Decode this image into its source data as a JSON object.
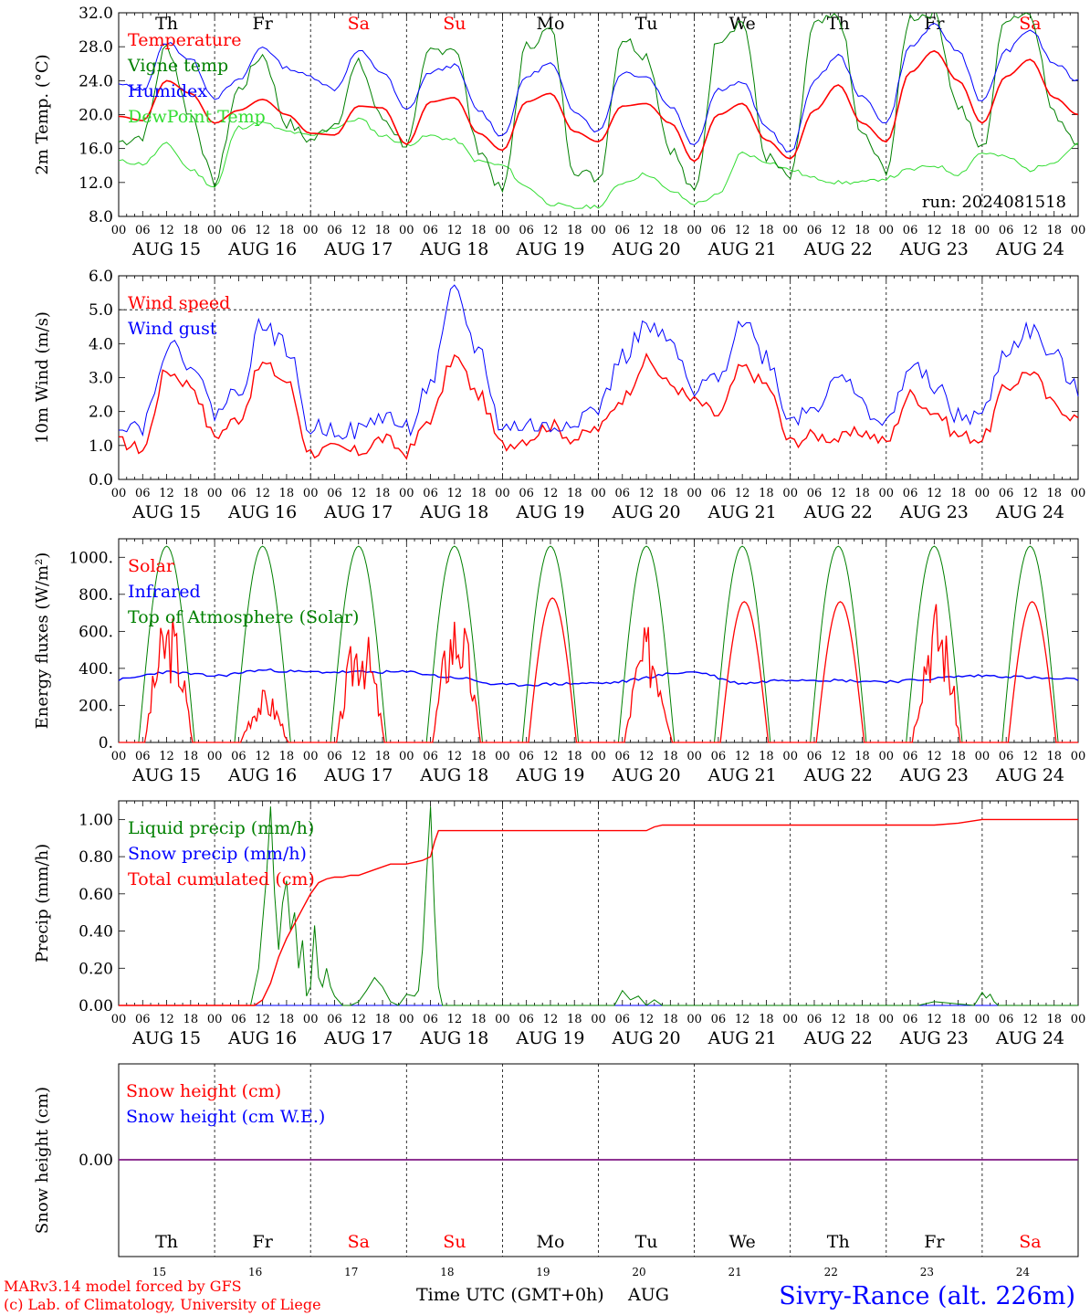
{
  "days": [
    {
      "abbr": "Th",
      "num": "15",
      "weekend": false
    },
    {
      "abbr": "Fr",
      "num": "16",
      "weekend": false
    },
    {
      "abbr": "Sa",
      "num": "17",
      "weekend": true
    },
    {
      "abbr": "Su",
      "num": "18",
      "weekend": true
    },
    {
      "abbr": "Mo",
      "num": "19",
      "weekend": false
    },
    {
      "abbr": "Tu",
      "num": "20",
      "weekend": false
    },
    {
      "abbr": "We",
      "num": "21",
      "weekend": false
    },
    {
      "abbr": "Th",
      "num": "22",
      "weekend": false
    },
    {
      "abbr": "Fr",
      "num": "23",
      "weekend": false
    },
    {
      "abbr": "Sa",
      "num": "24",
      "weekend": true
    }
  ],
  "hour_labels": [
    "00",
    "06",
    "12",
    "18"
  ],
  "end_hour_label": "00",
  "month_prefix": "AUG",
  "month_label": "AUG",
  "colors": {
    "red": "#ff0000",
    "blue": "#0000ff",
    "green": "#008000",
    "lime": "#33dd33",
    "weekend": "#ff0000"
  },
  "footer": {
    "model": "MARv3.14 model forced by GFS",
    "lab": "(c) Lab. of Climatology, University of Liege",
    "time_label": "Time UTC (GMT+0h)",
    "station": "Sivry-Rance (alt. 226m)"
  },
  "chart_data": [
    {
      "type": "line",
      "ylabel": "2m Temp. (°C)",
      "ylim": [
        8,
        32
      ],
      "yticks": [
        "8.0",
        "12.0",
        "16.0",
        "20.0",
        "24.0",
        "28.0",
        "32.0"
      ],
      "run_label": "run: 2024081518",
      "legend": [
        "Temperature",
        "Vigne temp",
        "Humidex",
        "DewPoint Temp"
      ],
      "x_hours": [
        0,
        6,
        12,
        18,
        24,
        30,
        36,
        42,
        48,
        54,
        60,
        66,
        72,
        78,
        84,
        90,
        96,
        102,
        108,
        114,
        120,
        126,
        132,
        138,
        144,
        150,
        156,
        162,
        168,
        174,
        180,
        186,
        192,
        198,
        204,
        210,
        216,
        222,
        228,
        234,
        240
      ],
      "series": [
        {
          "name": "Temperature",
          "color": "red",
          "values": [
            19.8,
            19.3,
            24.0,
            22.5,
            19.0,
            20.5,
            21.8,
            20.0,
            17.8,
            17.6,
            21.0,
            20.8,
            16.5,
            21.5,
            22.0,
            17.8,
            15.8,
            21.5,
            22.5,
            18.0,
            16.8,
            21.0,
            21.3,
            19.0,
            14.5,
            20.0,
            21.3,
            17.0,
            14.8,
            20.5,
            23.5,
            19.0,
            16.8,
            25.0,
            27.5,
            24.0,
            19.0,
            24.5,
            26.5,
            22.0,
            20.0
          ]
        },
        {
          "name": "Vigne temp",
          "color": "green",
          "values": [
            16.8,
            17.5,
            28.0,
            20.0,
            12.0,
            23.0,
            27.0,
            19.0,
            17.0,
            19.0,
            26.0,
            19.5,
            16.5,
            27.5,
            28.0,
            16.0,
            11.0,
            28.0,
            30.0,
            13.5,
            12.5,
            29.0,
            27.0,
            16.0,
            10.8,
            29.0,
            31.0,
            15.0,
            12.5,
            30.5,
            31.5,
            17.5,
            13.5,
            31.5,
            32.0,
            21.0,
            16.0,
            31.5,
            32.0,
            20.0,
            17.0
          ]
        },
        {
          "name": "Humidex",
          "color": "blue",
          "values": [
            23.5,
            23.0,
            28.5,
            26.5,
            22.0,
            24.0,
            28.0,
            25.5,
            24.5,
            23.0,
            27.5,
            25.0,
            20.5,
            25.0,
            25.8,
            20.5,
            17.5,
            24.5,
            26.0,
            20.5,
            18.0,
            25.0,
            24.5,
            21.0,
            16.5,
            23.0,
            23.8,
            18.5,
            15.5,
            24.0,
            27.0,
            22.0,
            19.0,
            28.0,
            30.5,
            27.5,
            21.5,
            27.5,
            30.0,
            26.0,
            24.0
          ]
        },
        {
          "name": "DewPoint Temp",
          "color": "lime",
          "values": [
            14.5,
            14.2,
            16.5,
            13.5,
            11.5,
            18.5,
            19.0,
            18.0,
            17.5,
            18.5,
            19.5,
            17.5,
            16.5,
            17.5,
            17.0,
            14.5,
            14.0,
            11.5,
            9.5,
            9.0,
            9.2,
            12.0,
            13.0,
            11.0,
            9.5,
            10.5,
            15.5,
            14.5,
            13.5,
            12.5,
            12.0,
            12.0,
            12.5,
            13.5,
            14.0,
            13.0,
            15.5,
            15.0,
            13.5,
            14.5,
            16.5
          ]
        }
      ]
    },
    {
      "type": "line",
      "ylabel": "10m Wind (m/s)",
      "ylim": [
        0,
        6
      ],
      "yticks": [
        "0.0",
        "1.0",
        "2.0",
        "3.0",
        "4.0",
        "5.0",
        "6.0"
      ],
      "dashed_y": 5,
      "legend": [
        "Wind speed",
        "Wind gust"
      ],
      "x_hours": [
        0,
        6,
        12,
        18,
        24,
        30,
        36,
        42,
        48,
        54,
        60,
        66,
        72,
        78,
        84,
        90,
        96,
        102,
        108,
        114,
        120,
        126,
        132,
        138,
        144,
        150,
        156,
        162,
        168,
        174,
        180,
        186,
        192,
        198,
        204,
        210,
        216,
        222,
        228,
        234,
        240
      ],
      "series": [
        {
          "name": "Wind speed",
          "color": "red",
          "values": [
            1.1,
            0.9,
            3.2,
            2.8,
            1.3,
            1.8,
            3.4,
            2.9,
            0.8,
            0.9,
            0.8,
            1.2,
            0.8,
            1.8,
            3.6,
            2.5,
            1.0,
            1.2,
            1.6,
            1.2,
            1.5,
            2.4,
            3.5,
            2.8,
            2.3,
            1.9,
            3.3,
            2.8,
            1.1,
            1.3,
            1.2,
            1.4,
            1.1,
            2.5,
            2.0,
            1.3,
            1.2,
            2.7,
            3.2,
            2.2,
            1.8
          ]
        },
        {
          "name": "Wind gust",
          "color": "blue",
          "values": [
            1.7,
            1.6,
            3.9,
            3.5,
            2.0,
            2.6,
            4.6,
            3.9,
            1.5,
            1.5,
            1.4,
            1.9,
            1.5,
            2.8,
            5.5,
            3.8,
            1.5,
            1.6,
            1.5,
            1.8,
            2.1,
            3.6,
            4.5,
            4.0,
            2.5,
            3.1,
            4.7,
            3.6,
            1.8,
            2.1,
            3.2,
            2.2,
            1.6,
            3.3,
            2.8,
            1.8,
            1.9,
            3.8,
            4.4,
            3.6,
            2.6
          ]
        }
      ]
    },
    {
      "type": "line",
      "ylabel": "Energy fluxes (W/m²)",
      "ylim": [
        0,
        1100
      ],
      "yticks": [
        "0.",
        "200.",
        "400.",
        "600.",
        "800.",
        "1000."
      ],
      "legend": [
        "Solar",
        "Infrared",
        "Top of Atmosphere (Solar)"
      ],
      "toa_peak": 1060,
      "solar_peaks": [
        700,
        280,
        640,
        740,
        780,
        620,
        760,
        760,
        760,
        760
      ],
      "infrared": {
        "x_hours": [
          0,
          12,
          24,
          36,
          48,
          60,
          72,
          84,
          96,
          120,
          144,
          156,
          168,
          192,
          216,
          240
        ],
        "values": [
          340,
          380,
          360,
          390,
          380,
          380,
          380,
          350,
          310,
          320,
          380,
          320,
          340,
          330,
          360,
          340
        ]
      },
      "series": [
        {
          "name": "Solar",
          "color": "red"
        },
        {
          "name": "Infrared",
          "color": "blue"
        },
        {
          "name": "Top of Atmosphere (Solar)",
          "color": "green"
        }
      ]
    },
    {
      "type": "line",
      "ylabel": "Precip (mm/h)",
      "ylim": [
        0,
        1.1
      ],
      "yticks": [
        "0.00",
        "0.20",
        "0.40",
        "0.60",
        "0.80",
        "1.00"
      ],
      "legend": [
        "Liquid precip (mm/h)",
        "Snow precip (mm/h)",
        "Total cumulated (cm)"
      ],
      "series": [
        {
          "name": "Liquid precip (mm/h)",
          "color": "green",
          "x_hours": [
            0,
            33,
            35,
            37,
            38,
            39,
            40,
            41,
            42,
            43,
            44,
            45,
            46,
            47,
            48,
            49,
            50,
            51,
            52,
            53,
            54,
            56,
            58,
            60,
            62,
            64,
            66,
            68,
            70,
            72,
            74,
            75,
            76,
            77,
            78,
            79,
            80,
            81,
            84,
            120,
            124,
            126,
            128,
            130,
            132,
            134,
            136,
            140,
            200,
            204,
            214,
            216,
            217,
            218,
            219,
            220,
            222,
            240
          ],
          "values": [
            0,
            0,
            0.2,
            0.7,
            1.07,
            0.6,
            0.3,
            0.55,
            0.67,
            0.4,
            0.5,
            0.2,
            0.35,
            0.05,
            0.1,
            0.43,
            0.15,
            0.1,
            0.2,
            0.1,
            0.05,
            0.0,
            0.0,
            0.02,
            0.08,
            0.15,
            0.1,
            0.02,
            0,
            0.06,
            0.05,
            0.08,
            0.3,
            0.7,
            1.07,
            0.5,
            0.1,
            0.0,
            0,
            0,
            0,
            0.08,
            0.03,
            0.05,
            0.0,
            0.03,
            0,
            0,
            0,
            0.02,
            0,
            0.07,
            0.04,
            0.06,
            0.02,
            0.0,
            0,
            0
          ]
        },
        {
          "name": "Snow precip (mm/h)",
          "color": "blue",
          "x_hours": [
            0,
            240
          ],
          "values": [
            0,
            0
          ]
        },
        {
          "name": "Total cumulated (cm)",
          "color": "red",
          "x_hours": [
            0,
            34,
            36,
            38,
            40,
            42,
            44,
            46,
            48,
            50,
            52,
            54,
            56,
            58,
            60,
            64,
            68,
            72,
            76,
            78,
            79,
            80,
            84,
            96,
            108,
            120,
            132,
            134,
            136,
            144,
            168,
            192,
            204,
            210,
            216,
            240
          ],
          "values": [
            0,
            0,
            0.03,
            0.12,
            0.26,
            0.36,
            0.44,
            0.52,
            0.6,
            0.66,
            0.68,
            0.69,
            0.69,
            0.7,
            0.7,
            0.73,
            0.76,
            0.76,
            0.78,
            0.8,
            0.88,
            0.94,
            0.94,
            0.94,
            0.94,
            0.94,
            0.94,
            0.96,
            0.97,
            0.97,
            0.97,
            0.97,
            0.97,
            0.98,
            1.0,
            1.0
          ]
        }
      ]
    },
    {
      "type": "line",
      "ylabel": "Snow height (cm)",
      "yticks": [
        "0.00"
      ],
      "legend": [
        "Snow height (cm)",
        "Snow height (cm W.E.)"
      ],
      "series": [
        {
          "name": "Snow height (cm)",
          "color": "red",
          "x_hours": [
            0,
            240
          ],
          "values": [
            0,
            0
          ]
        },
        {
          "name": "Snow height (cm W.E.)",
          "color": "blue",
          "x_hours": [
            0,
            240
          ],
          "values": [
            0,
            0
          ]
        }
      ]
    }
  ]
}
